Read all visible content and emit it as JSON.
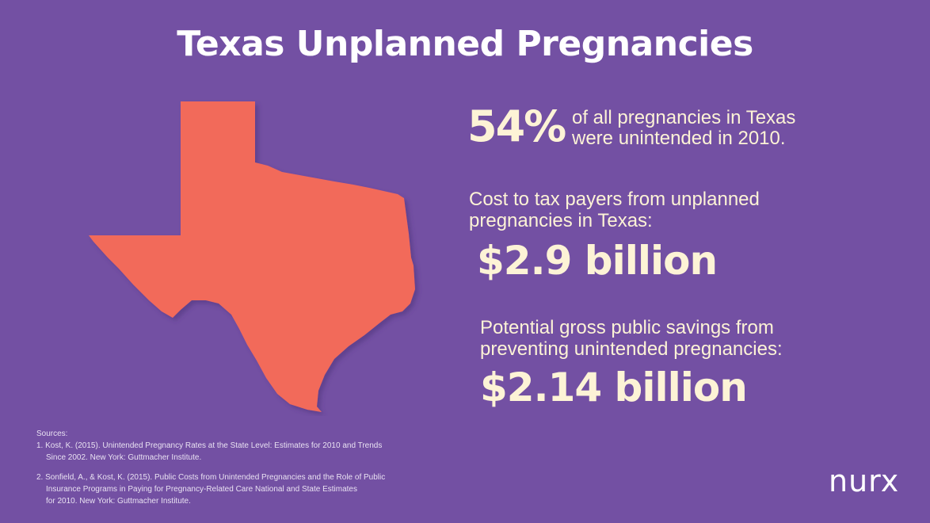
{
  "title": "Texas Unplanned Pregnancies",
  "stat_unintended": {
    "value": "54%",
    "line1": "of all pregnancies in Texas",
    "line2": "were unintended in 2010."
  },
  "cost": {
    "label_line1": "Cost to tax payers from unplanned",
    "label_line2": "pregnancies in Texas:",
    "value": "$2.9 billion"
  },
  "savings": {
    "label_line1": "Potential gross public savings from",
    "label_line2": "preventing unintended pregnancies:",
    "value": "$2.14 billion"
  },
  "sources": {
    "heading": "Sources:",
    "s1_line1": "1. Kost, K. (2015). Unintended Pregnancy Rates at the State Level: Estimates for 2010 and Trends",
    "s1_line2": "Since 2002. New York: Guttmacher Institute.",
    "s2_line1": "2. Sonfield, A., & Kost, K. (2015). Public Costs from Unintended Pregnancies and the Role of Public",
    "s2_line2": "Insurance Programs in Paying for Pregnancy-Related Care National and State Estimates",
    "s2_line3": "for 2010. New York: Guttmacher Institute."
  },
  "logo": "nurx",
  "colors": {
    "background": "#7350a3",
    "map_fill": "#f26a5a",
    "text": "#fdf3d6"
  },
  "icons": {
    "map": "texas-map-icon"
  }
}
